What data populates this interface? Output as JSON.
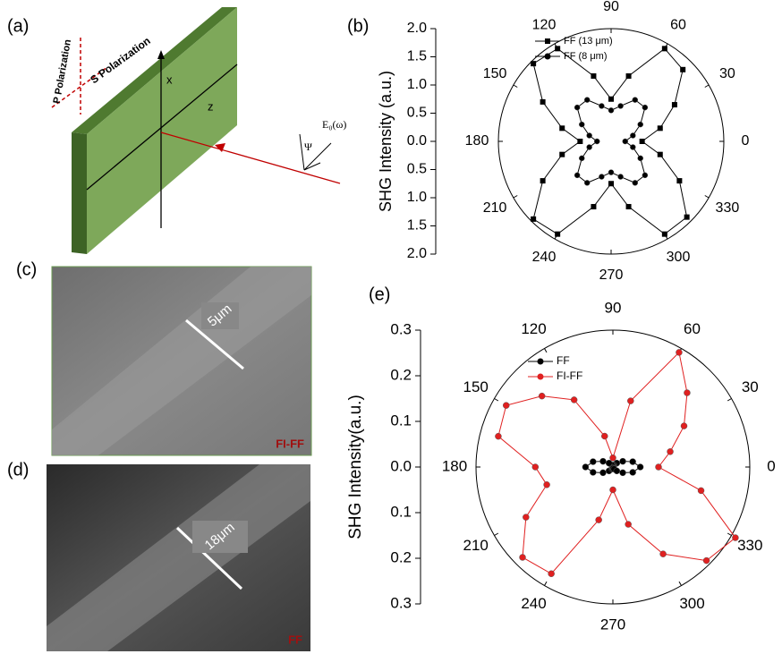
{
  "panels": {
    "a": "(a)",
    "b": "(b)",
    "c": "(c)",
    "d": "(d)",
    "e": "(e)"
  },
  "diagram": {
    "p_polarization": "P Polarization",
    "s_polarization": "S Polarization",
    "x_axis": "x",
    "z_axis": "z",
    "field": "E₀(ω)",
    "angle": "Ψ"
  },
  "images": [
    {
      "scale": "5μm",
      "label": "FI-FF"
    },
    {
      "scale": "18μm",
      "label": "FF"
    }
  ],
  "chart_data": [
    {
      "type": "polar",
      "y_label": "SHG Intensity (a.u.)",
      "ylim": [
        -2,
        2
      ],
      "yticks": [
        {
          "value": 2,
          "label": "2.0"
        },
        1.5,
        {
          "value": 1,
          "label": "1.0"
        },
        0.5,
        {
          "value": 0,
          "label": "0.0"
        },
        {
          "value": -0.5,
          "label": "0.5"
        },
        {
          "value": -1,
          "label": "1.0"
        },
        {
          "value": -1.5,
          "label": "1.5"
        },
        {
          "value": -2,
          "label": "2.0"
        }
      ],
      "thetaticks": [
        0,
        30,
        60,
        90,
        120,
        150,
        180,
        210,
        240,
        270,
        300,
        330
      ],
      "theta": [
        0,
        15,
        30,
        45,
        60,
        75,
        90,
        105,
        120,
        135,
        150,
        165,
        180,
        195,
        210,
        225,
        240,
        255,
        270,
        285,
        300,
        315,
        330,
        345
      ],
      "series": [
        {
          "name": "FF (13 μm)",
          "color": "#000000",
          "marker": "square",
          "values": [
            0.55,
            0.9,
            1.3,
            1.8,
            1.9,
            1.2,
            0.75,
            1.2,
            1.9,
            1.95,
            1.4,
            0.9,
            0.55,
            0.9,
            1.4,
            1.95,
            1.9,
            1.2,
            0.75,
            1.2,
            1.9,
            1.9,
            1.4,
            0.9
          ]
        },
        {
          "name": "FF (8 μm)",
          "color": "#000000",
          "marker": "circle",
          "values": [
            0.25,
            0.4,
            0.6,
            0.85,
            0.85,
            0.65,
            0.55,
            0.65,
            0.85,
            0.85,
            0.6,
            0.4,
            0.25,
            0.4,
            0.6,
            0.85,
            0.85,
            0.65,
            0.55,
            0.65,
            0.85,
            0.85,
            0.6,
            0.4
          ]
        }
      ]
    },
    {
      "type": "polar",
      "y_label": "SHG Intensity(a.u.)",
      "ylim": [
        -0.3,
        0.3
      ],
      "yticks": [
        0.3,
        0.2,
        0.1,
        {
          "value": 0,
          "label": "0.0"
        },
        {
          "value": -0.1,
          "label": "0.1"
        },
        {
          "value": -0.2,
          "label": "0.2"
        },
        {
          "value": -0.3,
          "label": "0.3"
        }
      ],
      "thetaticks": [
        0,
        30,
        60,
        90,
        120,
        150,
        180,
        210,
        240,
        270,
        300,
        330
      ],
      "theta": [
        0,
        15,
        30,
        45,
        60,
        75,
        90,
        105,
        120,
        135,
        150,
        165,
        180,
        195,
        210,
        225,
        240,
        255,
        270,
        285,
        300,
        315,
        330,
        345
      ],
      "series": [
        {
          "name": "FF",
          "color": "#000000",
          "marker": "circle",
          "values": [
            0.06,
            0.045,
            0.025,
            0.012,
            0.005,
            0.003,
            0.002,
            0.003,
            0.005,
            0.012,
            0.025,
            0.045,
            0.06,
            0.045,
            0.025,
            0.012,
            0.005,
            0.003,
            0.002,
            0.003,
            0.005,
            0.012,
            0.025,
            0.045
          ]
        },
        {
          "name": "FI-FF",
          "color": "#e02020",
          "marker": "circle",
          "values": [
            0.1,
            0.13,
            0.18,
            0.23,
            0.29,
            0.15,
            0.02,
            0.07,
            0.17,
            0.22,
            0.27,
            0.26,
            0.17,
            0.15,
            0.22,
            0.28,
            0.27,
            0.12,
            0.05,
            0.13,
            0.22,
            0.29,
            0.31,
            0.2
          ]
        }
      ]
    }
  ]
}
